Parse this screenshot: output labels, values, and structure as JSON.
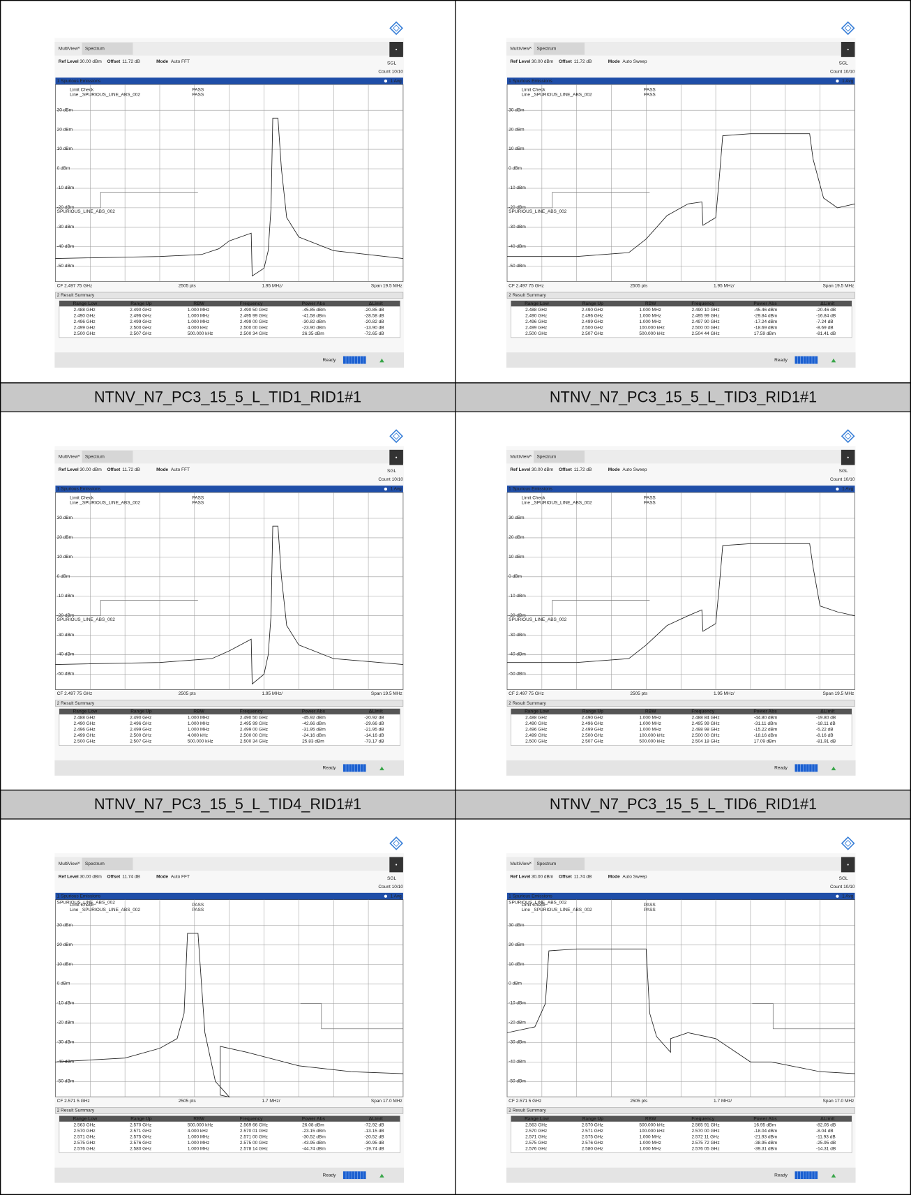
{
  "instrument": {
    "tab1": "MultiView",
    "tab2": "Spectrum",
    "ref_label": "Ref Level",
    "ref_value": "30.00 dBm",
    "offset_label": "Offset",
    "mode_label": "Mode",
    "sgl": "SGL",
    "count": "Count 10/10",
    "window1": "1 Spurious Emissions",
    "avg": "1 Avg",
    "limit_check": "Limit Check",
    "line_name": "Line _SPURIOUS_LINE_ABS_002",
    "pass": "PASS",
    "y_labels": [
      "30 dBm",
      "20 dBm",
      "10 dBm",
      "0 dBm",
      "-10 dBm",
      "-20 dBm",
      "-30 dBm",
      "-40 dBm",
      "-50 dBm"
    ],
    "points": "2505 pts",
    "window2": "2 Result Summary",
    "columns": [
      "Range Low",
      "Range Up",
      "RBW",
      "Frequency",
      "Power Abs",
      "ΔLimit"
    ],
    "status": "Ready"
  },
  "panels": [
    {
      "offset": "11.72 dB",
      "mode": "Auto FFT",
      "limit_label": "SPURIOUS_LINE_ABS_002",
      "cf": "CF 2.497 75 GHz",
      "div": "1.95 MHz/",
      "span": "Span 19.5 MHz",
      "rows": [
        [
          "2.488 GHz",
          "2.490 GHz",
          "1.000 MHz",
          "2.490 50 GHz",
          "-45.85 dBm",
          "-20.85 dB"
        ],
        [
          "2.490 GHz",
          "2.496 GHz",
          "1.000 MHz",
          "2.495 99 GHz",
          "-41.58 dBm",
          "-28.58 dB"
        ],
        [
          "2.496 GHz",
          "2.499 GHz",
          "1.000 MHz",
          "2.499 00 GHz",
          "-30.82 dBm",
          "-20.82 dB"
        ],
        [
          "2.499 GHz",
          "2.500 GHz",
          "4.000 kHz",
          "2.500 00 GHz",
          "-23.90 dBm",
          "-13.90 dB"
        ],
        [
          "2.500 GHz",
          "2.507 GHz",
          "500.000 kHz",
          "2.500 34 GHz",
          "26.35 dBm",
          "-72.65 dB"
        ]
      ],
      "caption": "NTNV_N7_PC3_15_5_L_TID1_RID1#1"
    },
    {
      "offset": "11.72 dB",
      "mode": "Auto Sweep",
      "limit_label": "SPURIOUS_LINE_ABS_002",
      "cf": "CF 2.497 75 GHz",
      "div": "1.95 MHz/",
      "span": "Span 19.5 MHz",
      "rows": [
        [
          "2.488 GHz",
          "2.490 GHz",
          "1.000 MHz",
          "2.490 10 GHz",
          "-45.46 dBm",
          "-20.46 dB"
        ],
        [
          "2.490 GHz",
          "2.496 GHz",
          "1.000 MHz",
          "2.495 99 GHz",
          "-29.84 dBm",
          "-16.84 dB"
        ],
        [
          "2.496 GHz",
          "2.499 GHz",
          "1.000 MHz",
          "2.497 90 GHz",
          "-17.24 dBm",
          "-7.24 dB"
        ],
        [
          "2.499 GHz",
          "2.500 GHz",
          "100.000 kHz",
          "2.500 00 GHz",
          "-18.69 dBm",
          "-8.69 dB"
        ],
        [
          "2.500 GHz",
          "2.507 GHz",
          "500.000 kHz",
          "2.504 44 GHz",
          "17.59 dBm",
          "-81.41 dB"
        ]
      ],
      "caption": "NTNV_N7_PC3_15_5_L_TID3_RID1#1"
    },
    {
      "offset": "11.72 dB",
      "mode": "Auto FFT",
      "limit_label": "SPURIOUS_LINE_ABS_002",
      "cf": "CF 2.497 75 GHz",
      "div": "1.95 MHz/",
      "span": "Span 19.5 MHz",
      "rows": [
        [
          "2.488 GHz",
          "2.490 GHz",
          "1.000 MHz",
          "2.490 50 GHz",
          "-45.92 dBm",
          "-20.92 dB"
        ],
        [
          "2.490 GHz",
          "2.496 GHz",
          "1.000 MHz",
          "2.495 99 GHz",
          "-42.66 dBm",
          "-29.66 dB"
        ],
        [
          "2.496 GHz",
          "2.499 GHz",
          "1.000 MHz",
          "2.499 00 GHz",
          "-31.95 dBm",
          "-21.95 dB"
        ],
        [
          "2.499 GHz",
          "2.500 GHz",
          "4.000 kHz",
          "2.500 00 GHz",
          "-24.16 dBm",
          "-14.16 dB"
        ],
        [
          "2.500 GHz",
          "2.507 GHz",
          "500.000 kHz",
          "2.500 34 GHz",
          "25.83 dBm",
          "-73.17 dB"
        ]
      ],
      "caption": "NTNV_N7_PC3_15_5_L_TID4_RID1#1"
    },
    {
      "offset": "11.72 dB",
      "mode": "Auto Sweep",
      "limit_label": "SPURIOUS_LINE_ABS_002",
      "cf": "CF 2.497 75 GHz",
      "div": "1.95 MHz/",
      "span": "Span 19.5 MHz",
      "rows": [
        [
          "2.488 GHz",
          "2.490 GHz",
          "1.000 MHz",
          "2.488 84 GHz",
          "-44.80 dBm",
          "-19.80 dB"
        ],
        [
          "2.490 GHz",
          "2.496 GHz",
          "1.000 MHz",
          "2.495 99 GHz",
          "-31.11 dBm",
          "-18.11 dB"
        ],
        [
          "2.496 GHz",
          "2.499 GHz",
          "1.000 MHz",
          "2.498 98 GHz",
          "-15.22 dBm",
          "-5.22 dB"
        ],
        [
          "2.499 GHz",
          "2.500 GHz",
          "100.000 kHz",
          "2.500 00 GHz",
          "-18.16 dBm",
          "-8.16 dB"
        ],
        [
          "2.500 GHz",
          "2.507 GHz",
          "500.000 kHz",
          "2.504 18 GHz",
          "17.09 dBm",
          "-81.91 dB"
        ]
      ],
      "caption": "NTNV_N7_PC3_15_5_L_TID6_RID1#1"
    },
    {
      "offset": "11.74 dB",
      "mode": "Auto FFT",
      "limit_label": "SPURIOUS_LINE_ABS_002",
      "cf": "CF 2.571 5 GHz",
      "div": "1.7 MHz/",
      "span": "Span 17.0 MHz",
      "rows": [
        [
          "2.563 GHz",
          "2.570 GHz",
          "500.000 kHz",
          "2.569 66 GHz",
          "26.08 dBm",
          "-72.92 dB"
        ],
        [
          "2.570 GHz",
          "2.571 GHz",
          "4.000 kHz",
          "2.570 01 GHz",
          "-23.15 dBm",
          "-13.15 dB"
        ],
        [
          "2.571 GHz",
          "2.575 GHz",
          "1.000 MHz",
          "2.571 00 GHz",
          "-30.52 dBm",
          "-20.52 dB"
        ],
        [
          "2.575 GHz",
          "2.576 GHz",
          "1.000 MHz",
          "2.575 00 GHz",
          "-43.95 dBm",
          "-30.95 dB"
        ],
        [
          "2.576 GHz",
          "2.580 GHz",
          "1.000 MHz",
          "2.578 14 GHz",
          "-44.74 dBm",
          "-19.74 dB"
        ]
      ]
    },
    {
      "offset": "11.74 dB",
      "mode": "Auto Sweep",
      "limit_label": "SPURIOUS_LINE_ABS_002",
      "cf": "CF 2.571 5 GHz",
      "div": "1.7 MHz/",
      "span": "Span 17.0 MHz",
      "rows": [
        [
          "2.563 GHz",
          "2.570 GHz",
          "500.000 kHz",
          "2.565 91 GHz",
          "16.95 dBm",
          "-82.05 dB"
        ],
        [
          "2.570 GHz",
          "2.571 GHz",
          "100.000 kHz",
          "2.570 00 GHz",
          "-18.04 dBm",
          "-8.04 dB"
        ],
        [
          "2.571 GHz",
          "2.575 GHz",
          "1.000 MHz",
          "2.572 11 GHz",
          "-21.93 dBm",
          "-11.93 dB"
        ],
        [
          "2.575 GHz",
          "2.576 GHz",
          "1.000 MHz",
          "2.575 72 GHz",
          "-38.95 dBm",
          "-25.95 dB"
        ],
        [
          "2.576 GHz",
          "2.580 GHz",
          "1.000 MHz",
          "2.576 05 GHz",
          "-39.31 dBm",
          "-14.31 dB"
        ]
      ]
    }
  ]
}
